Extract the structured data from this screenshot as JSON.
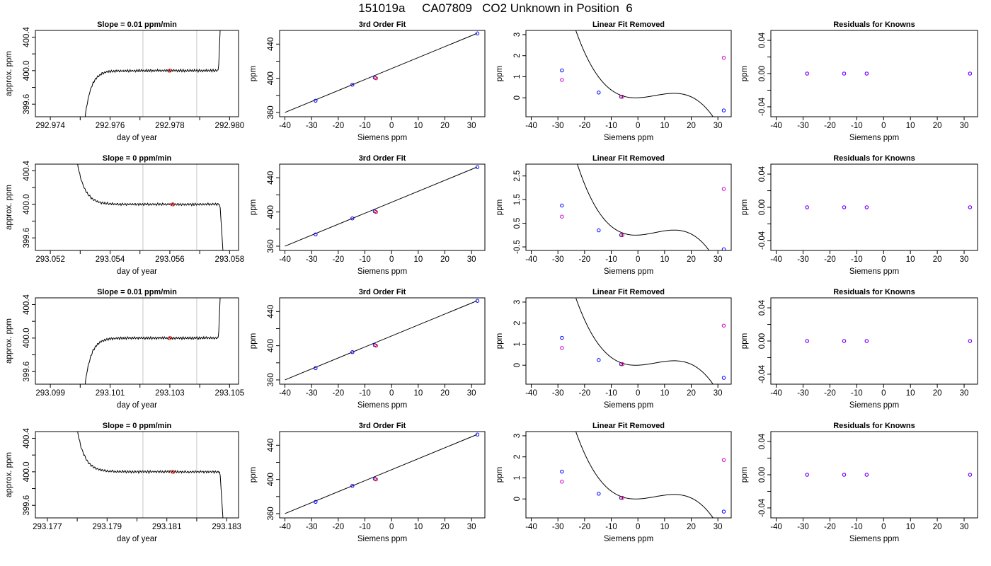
{
  "main_title": "151019a     CA07809   CO2 Unknown in Position  6",
  "colors": {
    "trace": "#000000",
    "grid_line": "#c8c8c8",
    "marker_red": "#ff0000",
    "marker_blue": "#0000ff",
    "marker_magenta": "#cc00cc",
    "marker_purple": "#7a00ff"
  },
  "chart_data": [
    {
      "panel": "row1-trace",
      "type": "line",
      "title": "Slope =  0.01  ppm/min",
      "xlabel": "day of year",
      "ylabel": "approx. ppm",
      "xlim": [
        292.9735,
        292.9803
      ],
      "ylim": [
        399.45,
        400.48
      ],
      "xticks": [
        292.974,
        292.975,
        292.976,
        292.977,
        292.978,
        292.979,
        292.98
      ],
      "xtick_labels": [
        "292.974",
        "",
        "292.976",
        "",
        "292.978",
        "",
        "292.980"
      ],
      "yticks": [
        399.6,
        399.8,
        400.0,
        400.2,
        400.4
      ],
      "ytick_labels": [
        "399.6",
        "",
        "400.0",
        "",
        "400.4"
      ],
      "vlines": [
        292.9771,
        292.9789
      ],
      "trace": {
        "start": 292.9751,
        "end": 292.9797,
        "plateau": 400.0,
        "rise": "right"
      },
      "point": {
        "x": 292.978,
        "y": 400.0
      }
    },
    {
      "panel": "row1-fit",
      "type": "line",
      "title": "3rd Order Fit",
      "xlabel": "Siemens ppm",
      "ylabel": "ppm",
      "xlim": [
        -42,
        35
      ],
      "ylim": [
        355,
        456
      ],
      "xticks": [
        -40,
        -30,
        -20,
        -10,
        0,
        10,
        20,
        30
      ],
      "xtick_labels": [
        "-40",
        "-30",
        "-20",
        "-10",
        "0",
        "10",
        "20",
        "30"
      ],
      "yticks": [
        360,
        380,
        400,
        420,
        440
      ],
      "ytick_labels": [
        "360",
        "",
        "400",
        "",
        "440"
      ],
      "line": [
        [
          -40,
          360.0
        ],
        [
          32,
          452.5
        ]
      ],
      "knowns": [
        [
          -28.5,
          373.8
        ],
        [
          -14.7,
          392.5
        ],
        [
          -6.3,
          400.7
        ],
        [
          32.2,
          452.5
        ]
      ],
      "unknown": [
        -5.8,
        400.0
      ]
    },
    {
      "panel": "row1-linear-removed",
      "type": "line",
      "title": "Linear Fit Removed",
      "xlabel": "Siemens ppm",
      "ylabel": "ppm",
      "xlim": [
        -42,
        35
      ],
      "ylim": [
        -0.9,
        3.2
      ],
      "xticks": [
        -40,
        -30,
        -20,
        -10,
        0,
        10,
        20,
        30
      ],
      "xtick_labels": [
        "-40",
        "-30",
        "-20",
        "-10",
        "0",
        "10",
        "20",
        "30"
      ],
      "yticks": [
        0,
        1,
        2,
        3
      ],
      "ytick_labels": [
        "0",
        "1",
        "2",
        "3"
      ],
      "cubic": {
        "a": -0.000144,
        "b": 0.00275,
        "c": 0.0048,
        "d": 0.0
      },
      "knowns": [
        [
          -28.5,
          1.3
        ],
        [
          -14.7,
          0.25
        ],
        [
          -6.3,
          0.05
        ],
        [
          32.2,
          -0.6
        ]
      ],
      "magenta": [
        [
          -28.5,
          0.85
        ],
        [
          32.2,
          1.9
        ]
      ],
      "unknown": [
        -5.8,
        0.05
      ]
    },
    {
      "panel": "row1-residuals",
      "type": "scatter",
      "title": "Residuals for Knowns",
      "xlabel": "Siemens ppm",
      "ylabel": "ppm",
      "xlim": [
        -42,
        35
      ],
      "ylim": [
        -0.052,
        0.052
      ],
      "xticks": [
        -40,
        -30,
        -20,
        -10,
        0,
        10,
        20,
        30
      ],
      "xtick_labels": [
        "-40",
        "-30",
        "-20",
        "-10",
        "0",
        "10",
        "20",
        "30"
      ],
      "yticks": [
        -0.04,
        -0.02,
        0.0,
        0.02,
        0.04
      ],
      "ytick_labels": [
        "-0.04",
        "",
        "0.00",
        "",
        "0.04"
      ],
      "points": [
        [
          -28.5,
          0.0
        ],
        [
          -14.7,
          0.0
        ],
        [
          -6.3,
          0.0
        ],
        [
          32.2,
          0.0
        ]
      ]
    },
    {
      "panel": "row2-trace",
      "type": "line",
      "title": "Slope =  0  ppm/min",
      "xlabel": "day of year",
      "ylabel": "approx. ppm",
      "xlim": [
        293.0515,
        293.0583
      ],
      "ylim": [
        399.45,
        400.48
      ],
      "xticks": [
        293.052,
        293.053,
        293.054,
        293.055,
        293.056,
        293.057,
        293.058
      ],
      "xtick_labels": [
        "293.052",
        "",
        "293.054",
        "",
        "293.056",
        "",
        "293.058"
      ],
      "yticks": [
        399.6,
        399.8,
        400.0,
        400.2,
        400.4
      ],
      "ytick_labels": [
        "399.6",
        "",
        "400.0",
        "",
        "400.4"
      ],
      "vlines": [
        293.0551,
        293.0569
      ],
      "trace": {
        "start": 293.0528,
        "end": 293.0578,
        "plateau": 400.0,
        "rise": "left"
      },
      "point": {
        "x": 293.0561,
        "y": 400.0
      }
    },
    {
      "panel": "row2-fit",
      "type": "line",
      "title": "3rd Order Fit",
      "xlabel": "Siemens ppm",
      "ylabel": "ppm",
      "xlim": [
        -42,
        35
      ],
      "ylim": [
        355,
        456
      ],
      "xticks": [
        -40,
        -30,
        -20,
        -10,
        0,
        10,
        20,
        30
      ],
      "xtick_labels": [
        "-40",
        "-30",
        "-20",
        "-10",
        "0",
        "10",
        "20",
        "30"
      ],
      "yticks": [
        360,
        380,
        400,
        420,
        440
      ],
      "ytick_labels": [
        "360",
        "",
        "400",
        "",
        "440"
      ],
      "line": [
        [
          -40,
          360.0
        ],
        [
          32,
          452.5
        ]
      ],
      "knowns": [
        [
          -28.5,
          373.8
        ],
        [
          -14.7,
          392.5
        ],
        [
          -6.3,
          400.7
        ],
        [
          32.2,
          452.5
        ]
      ],
      "unknown": [
        -5.8,
        400.0
      ]
    },
    {
      "panel": "row2-linear-removed",
      "type": "line",
      "title": "Linear Fit Removed",
      "xlabel": "Siemens ppm",
      "ylabel": "ppm",
      "xlim": [
        -42,
        35
      ],
      "ylim": [
        -0.65,
        3.0
      ],
      "xticks": [
        -40,
        -30,
        -20,
        -10,
        0,
        10,
        20,
        30
      ],
      "xtick_labels": [
        "-40",
        "-30",
        "-20",
        "-10",
        "0",
        "10",
        "20",
        "30"
      ],
      "yticks": [
        -0.5,
        0.5,
        1.5,
        2.5
      ],
      "ytick_labels": [
        "-0.5",
        "0.5",
        "1.5",
        "2.5"
      ],
      "cubic": {
        "a": -0.000144,
        "b": 0.00275,
        "c": 0.0048,
        "d": 0.0
      },
      "knowns": [
        [
          -28.5,
          1.25
        ],
        [
          -14.7,
          0.2
        ],
        [
          -6.3,
          0.0
        ],
        [
          32.2,
          -0.6
        ]
      ],
      "magenta": [
        [
          -28.5,
          0.78
        ],
        [
          32.2,
          1.95
        ]
      ],
      "unknown": [
        -5.8,
        0.0
      ]
    },
    {
      "panel": "row2-residuals",
      "type": "scatter",
      "title": "Residuals for Knowns",
      "xlabel": "Siemens ppm",
      "ylabel": "ppm",
      "xlim": [
        -42,
        35
      ],
      "ylim": [
        -0.052,
        0.052
      ],
      "xticks": [
        -40,
        -30,
        -20,
        -10,
        0,
        10,
        20,
        30
      ],
      "xtick_labels": [
        "-40",
        "-30",
        "-20",
        "-10",
        "0",
        "10",
        "20",
        "30"
      ],
      "yticks": [
        -0.04,
        -0.02,
        0.0,
        0.02,
        0.04
      ],
      "ytick_labels": [
        "-0.04",
        "",
        "0.00",
        "",
        "0.04"
      ],
      "points": [
        [
          -28.5,
          0.0
        ],
        [
          -14.7,
          0.0
        ],
        [
          -6.3,
          0.0
        ],
        [
          32.2,
          0.0
        ]
      ]
    },
    {
      "panel": "row3-trace",
      "type": "line",
      "title": "Slope =  0.01  ppm/min",
      "xlabel": "day of year",
      "ylabel": "approx. ppm",
      "xlim": [
        293.0985,
        293.1053
      ],
      "ylim": [
        399.45,
        400.48
      ],
      "xticks": [
        293.099,
        293.1,
        293.101,
        293.102,
        293.103,
        293.104,
        293.105
      ],
      "xtick_labels": [
        "293.099",
        "",
        "293.101",
        "",
        "293.103",
        "",
        "293.105"
      ],
      "yticks": [
        399.6,
        399.8,
        400.0,
        400.2,
        400.4
      ],
      "ytick_labels": [
        "399.6",
        "",
        "400.0",
        "",
        "400.4"
      ],
      "vlines": [
        293.1021,
        293.1039
      ],
      "trace": {
        "start": 293.1001,
        "end": 293.1047,
        "plateau": 400.0,
        "rise": "right"
      },
      "point": {
        "x": 293.103,
        "y": 400.0
      }
    },
    {
      "panel": "row3-fit",
      "type": "line",
      "title": "3rd Order Fit",
      "xlabel": "Siemens ppm",
      "ylabel": "ppm",
      "xlim": [
        -42,
        35
      ],
      "ylim": [
        355,
        456
      ],
      "xticks": [
        -40,
        -30,
        -20,
        -10,
        0,
        10,
        20,
        30
      ],
      "xtick_labels": [
        "-40",
        "-30",
        "-20",
        "-10",
        "0",
        "10",
        "20",
        "30"
      ],
      "yticks": [
        360,
        380,
        400,
        420,
        440
      ],
      "ytick_labels": [
        "360",
        "",
        "400",
        "",
        "440"
      ],
      "line": [
        [
          -40,
          360.0
        ],
        [
          32,
          452.5
        ]
      ],
      "knowns": [
        [
          -28.5,
          373.8
        ],
        [
          -14.7,
          392.5
        ],
        [
          -6.3,
          400.7
        ],
        [
          32.2,
          452.5
        ]
      ],
      "unknown": [
        -5.8,
        400.0
      ]
    },
    {
      "panel": "row3-linear-removed",
      "type": "line",
      "title": "Linear Fit Removed",
      "xlabel": "Siemens ppm",
      "ylabel": "ppm",
      "xlim": [
        -42,
        35
      ],
      "ylim": [
        -0.9,
        3.2
      ],
      "xticks": [
        -40,
        -30,
        -20,
        -10,
        0,
        10,
        20,
        30
      ],
      "xtick_labels": [
        "-40",
        "-30",
        "-20",
        "-10",
        "0",
        "10",
        "20",
        "30"
      ],
      "yticks": [
        0,
        1,
        2,
        3
      ],
      "ytick_labels": [
        "0",
        "1",
        "2",
        "3"
      ],
      "cubic": {
        "a": -0.000144,
        "b": 0.00275,
        "c": 0.0048,
        "d": 0.0
      },
      "knowns": [
        [
          -28.5,
          1.3
        ],
        [
          -14.7,
          0.25
        ],
        [
          -6.3,
          0.05
        ],
        [
          32.2,
          -0.6
        ]
      ],
      "magenta": [
        [
          -28.5,
          0.82
        ],
        [
          32.2,
          1.88
        ]
      ],
      "unknown": [
        -5.8,
        0.05
      ]
    },
    {
      "panel": "row3-residuals",
      "type": "scatter",
      "title": "Residuals for Knowns",
      "xlabel": "Siemens ppm",
      "ylabel": "ppm",
      "xlim": [
        -42,
        35
      ],
      "ylim": [
        -0.052,
        0.052
      ],
      "xticks": [
        -40,
        -30,
        -20,
        -10,
        0,
        10,
        20,
        30
      ],
      "xtick_labels": [
        "-40",
        "-30",
        "-20",
        "-10",
        "0",
        "10",
        "20",
        "30"
      ],
      "yticks": [
        -0.04,
        -0.02,
        0.0,
        0.02,
        0.04
      ],
      "ytick_labels": [
        "-0.04",
        "",
        "0.00",
        "",
        "0.04"
      ],
      "points": [
        [
          -28.5,
          0.0
        ],
        [
          -14.7,
          0.0
        ],
        [
          -6.3,
          0.0
        ],
        [
          32.2,
          0.0
        ]
      ]
    },
    {
      "panel": "row4-trace",
      "type": "line",
      "title": "Slope =  0  ppm/min",
      "xlabel": "day of year",
      "ylabel": "approx. ppm",
      "xlim": [
        293.1766,
        293.1834
      ],
      "ylim": [
        399.45,
        400.48
      ],
      "xticks": [
        293.177,
        293.178,
        293.179,
        293.18,
        293.181,
        293.182,
        293.183
      ],
      "xtick_labels": [
        "293.177",
        "",
        "293.179",
        "",
        "293.181",
        "",
        "293.183"
      ],
      "yticks": [
        399.6,
        399.8,
        400.0,
        400.2,
        400.4
      ],
      "ytick_labels": [
        "399.6",
        "",
        "400.0",
        "",
        "400.4"
      ],
      "vlines": [
        293.1802,
        293.182
      ],
      "trace": {
        "start": 293.1779,
        "end": 293.1829,
        "plateau": 400.0,
        "rise": "left"
      },
      "point": {
        "x": 293.1812,
        "y": 400.0
      }
    },
    {
      "panel": "row4-fit",
      "type": "line",
      "title": "3rd Order Fit",
      "xlabel": "Siemens ppm",
      "ylabel": "ppm",
      "xlim": [
        -42,
        35
      ],
      "ylim": [
        355,
        456
      ],
      "xticks": [
        -40,
        -30,
        -20,
        -10,
        0,
        10,
        20,
        30
      ],
      "xtick_labels": [
        "-40",
        "-30",
        "-20",
        "-10",
        "0",
        "10",
        "20",
        "30"
      ],
      "yticks": [
        360,
        380,
        400,
        420,
        440
      ],
      "ytick_labels": [
        "360",
        "",
        "400",
        "",
        "440"
      ],
      "line": [
        [
          -40,
          360.0
        ],
        [
          32,
          452.5
        ]
      ],
      "knowns": [
        [
          -28.5,
          373.8
        ],
        [
          -14.7,
          392.5
        ],
        [
          -6.3,
          400.7
        ],
        [
          32.2,
          452.5
        ]
      ],
      "unknown": [
        -5.8,
        400.0
      ]
    },
    {
      "panel": "row4-linear-removed",
      "type": "line",
      "title": "Linear Fit Removed",
      "xlabel": "Siemens ppm",
      "ylabel": "ppm",
      "xlim": [
        -42,
        35
      ],
      "ylim": [
        -0.9,
        3.2
      ],
      "xticks": [
        -40,
        -30,
        -20,
        -10,
        0,
        10,
        20,
        30
      ],
      "xtick_labels": [
        "-40",
        "-30",
        "-20",
        "-10",
        "0",
        "10",
        "20",
        "30"
      ],
      "yticks": [
        0,
        1,
        2,
        3
      ],
      "ytick_labels": [
        "0",
        "1",
        "2",
        "3"
      ],
      "cubic": {
        "a": -0.000144,
        "b": 0.00275,
        "c": 0.0048,
        "d": 0.0
      },
      "knowns": [
        [
          -28.5,
          1.3
        ],
        [
          -14.7,
          0.25
        ],
        [
          -6.3,
          0.05
        ],
        [
          32.2,
          -0.6
        ]
      ],
      "magenta": [
        [
          -28.5,
          0.82
        ],
        [
          32.2,
          1.85
        ]
      ],
      "unknown": [
        -5.8,
        0.05
      ]
    },
    {
      "panel": "row4-residuals",
      "type": "scatter",
      "title": "Residuals for Knowns",
      "xlabel": "Siemens ppm",
      "ylabel": "ppm",
      "xlim": [
        -42,
        35
      ],
      "ylim": [
        -0.052,
        0.052
      ],
      "xticks": [
        -40,
        -30,
        -20,
        -10,
        0,
        10,
        20,
        30
      ],
      "xtick_labels": [
        "-40",
        "-30",
        "-20",
        "-10",
        "0",
        "10",
        "20",
        "30"
      ],
      "yticks": [
        -0.04,
        -0.02,
        0.0,
        0.02,
        0.04
      ],
      "ytick_labels": [
        "-0.04",
        "",
        "0.00",
        "",
        "0.04"
      ],
      "points": [
        [
          -28.5,
          0.0
        ],
        [
          -14.7,
          0.0
        ],
        [
          -6.3,
          0.0
        ],
        [
          32.2,
          0.0
        ]
      ]
    }
  ]
}
